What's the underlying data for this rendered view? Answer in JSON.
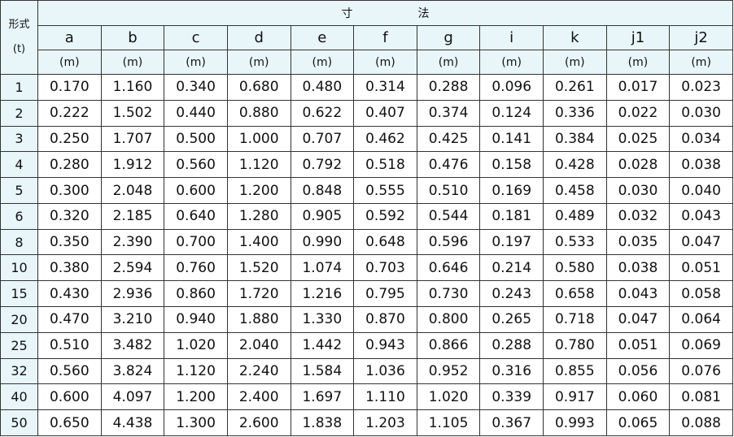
{
  "header": {
    "title": "寸法",
    "corner_label": "形式",
    "corner_unit": "(t)",
    "columns": [
      "a",
      "b",
      "c",
      "d",
      "e",
      "f",
      "g",
      "i",
      "k",
      "j1",
      "j2"
    ],
    "units": [
      "(m)",
      "(m)",
      "(m)",
      "(m)",
      "(m)",
      "(m)",
      "(m)",
      "(m)",
      "(m)",
      "(m)",
      "(m)"
    ]
  },
  "table": {
    "rows": [
      [
        "1",
        "0.170",
        "1.160",
        "0.340",
        "0.680",
        "0.480",
        "0.314",
        "0.288",
        "0.096",
        "0.261",
        "0.017",
        "0.023"
      ],
      [
        "2",
        "0.222",
        "1.502",
        "0.440",
        "0.880",
        "0.622",
        "0.407",
        "0.374",
        "0.124",
        "0.336",
        "0.022",
        "0.030"
      ],
      [
        "3",
        "0.250",
        "1.707",
        "0.500",
        "1.000",
        "0.707",
        "0.462",
        "0.425",
        "0.141",
        "0.384",
        "0.025",
        "0.034"
      ],
      [
        "4",
        "0.280",
        "1.912",
        "0.560",
        "1.120",
        "0.792",
        "0.518",
        "0.476",
        "0.158",
        "0.428",
        "0.028",
        "0.038"
      ],
      [
        "5",
        "0.300",
        "2.048",
        "0.600",
        "1.200",
        "0.848",
        "0.555",
        "0.510",
        "0.169",
        "0.458",
        "0.030",
        "0.040"
      ],
      [
        "6",
        "0.320",
        "2.185",
        "0.640",
        "1.280",
        "0.905",
        "0.592",
        "0.544",
        "0.181",
        "0.489",
        "0.032",
        "0.043"
      ],
      [
        "8",
        "0.350",
        "2.390",
        "0.700",
        "1.400",
        "0.990",
        "0.648",
        "0.596",
        "0.197",
        "0.533",
        "0.035",
        "0.047"
      ],
      [
        "10",
        "0.380",
        "2.594",
        "0.760",
        "1.520",
        "1.074",
        "0.703",
        "0.646",
        "0.214",
        "0.580",
        "0.038",
        "0.051"
      ],
      [
        "15",
        "0.430",
        "2.936",
        "0.860",
        "1.720",
        "1.216",
        "0.795",
        "0.730",
        "0.243",
        "0.658",
        "0.043",
        "0.058"
      ],
      [
        "20",
        "0.470",
        "3.210",
        "0.940",
        "1.880",
        "1.330",
        "0.870",
        "0.800",
        "0.265",
        "0.718",
        "0.047",
        "0.064"
      ],
      [
        "25",
        "0.510",
        "3.482",
        "1.020",
        "2.040",
        "1.442",
        "0.943",
        "0.866",
        "0.288",
        "0.780",
        "0.051",
        "0.069"
      ],
      [
        "32",
        "0.560",
        "3.824",
        "1.120",
        "2.240",
        "1.584",
        "1.036",
        "0.952",
        "0.316",
        "0.855",
        "0.056",
        "0.076"
      ],
      [
        "40",
        "0.600",
        "4.097",
        "1.200",
        "2.400",
        "1.697",
        "1.110",
        "1.020",
        "0.339",
        "0.917",
        "0.060",
        "0.081"
      ],
      [
        "50",
        "0.650",
        "4.438",
        "1.300",
        "2.600",
        "1.838",
        "1.203",
        "1.105",
        "0.367",
        "0.993",
        "0.065",
        "0.088"
      ]
    ]
  }
}
